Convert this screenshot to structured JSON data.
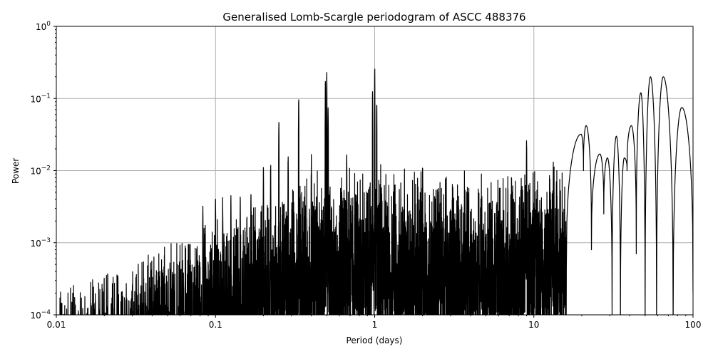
{
  "chart_data": {
    "type": "line",
    "title": "Generalised Lomb-Scargle periodogram of ASCC 488376",
    "xlabel": "Period (days)",
    "ylabel": "Power",
    "xscale": "log",
    "yscale": "log",
    "xlim": [
      0.01,
      100
    ],
    "ylim": [
      0.0001,
      1
    ],
    "grid": true,
    "line_color": "#000000",
    "grid_color": "#b0b0b0",
    "x_ticks": [
      {
        "v": 0.01,
        "label": "0.01"
      },
      {
        "v": 0.1,
        "label": "0.1"
      },
      {
        "v": 1,
        "label": "1"
      },
      {
        "v": 10,
        "label": "10"
      },
      {
        "v": 100,
        "label": "100"
      }
    ],
    "y_ticks": [
      {
        "v": 0.0001,
        "base": "10",
        "exp": "−4"
      },
      {
        "v": 0.001,
        "base": "10",
        "exp": "−3"
      },
      {
        "v": 0.01,
        "base": "10",
        "exp": "−2"
      },
      {
        "v": 0.1,
        "base": "10",
        "exp": "−1"
      },
      {
        "v": 1,
        "base": "10",
        "exp": "0"
      }
    ],
    "noise_envelope": [
      [
        0.01,
        0.00018
      ],
      [
        0.02,
        0.0003
      ],
      [
        0.05,
        0.0007
      ],
      [
        0.1,
        0.0015
      ],
      [
        0.2,
        0.003
      ],
      [
        0.5,
        0.006
      ],
      [
        1,
        0.008
      ],
      [
        2,
        0.006
      ],
      [
        5,
        0.005
      ],
      [
        10,
        0.007
      ],
      [
        18,
        0.01
      ]
    ],
    "spikes": [
      [
        0.0833,
        0.004
      ],
      [
        0.1,
        0.005
      ],
      [
        0.111,
        0.0045
      ],
      [
        0.125,
        0.005
      ],
      [
        0.143,
        0.005
      ],
      [
        0.167,
        0.006
      ],
      [
        0.2,
        0.012
      ],
      [
        0.222,
        0.016
      ],
      [
        0.25,
        0.06
      ],
      [
        0.286,
        0.02
      ],
      [
        0.333,
        0.13
      ],
      [
        0.4,
        0.018
      ],
      [
        0.5,
        0.25
      ],
      [
        0.49,
        0.2
      ],
      [
        0.51,
        0.09
      ],
      [
        0.667,
        0.018
      ],
      [
        0.97,
        0.15
      ],
      [
        1.0,
        0.33
      ],
      [
        1.03,
        0.12
      ],
      [
        2.0,
        0.015
      ],
      [
        9.0,
        0.03
      ]
    ],
    "long_period_peaks": [
      [
        19.8,
        0.032
      ],
      [
        21.3,
        0.042
      ],
      [
        26,
        0.017
      ],
      [
        29,
        0.015
      ],
      [
        33,
        0.03
      ],
      [
        37,
        0.015
      ],
      [
        41,
        0.042
      ],
      [
        47,
        0.12
      ],
      [
        54,
        0.2
      ],
      [
        65,
        0.2
      ],
      [
        85,
        0.075
      ]
    ],
    "long_period_troughs": [
      [
        16,
        0.0004
      ],
      [
        20.5,
        0.01
      ],
      [
        23,
        0.0008
      ],
      [
        27.5,
        0.0025
      ],
      [
        31,
        0.0001
      ],
      [
        35,
        5e-05
      ],
      [
        38.5,
        0.01
      ],
      [
        44,
        0.0007
      ],
      [
        50,
        5e-05
      ],
      [
        59,
        5e-05
      ],
      [
        75,
        5e-05
      ],
      [
        100,
        0.0002
      ]
    ]
  }
}
